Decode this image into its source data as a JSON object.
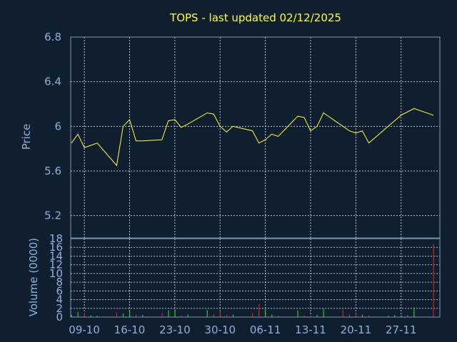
{
  "chart_data": [
    {
      "type": "line",
      "title": "TOPS - last updated 02/12/2025",
      "ylabel": "Price",
      "ylim": [
        5.0,
        6.8
      ],
      "yticks": [
        "6.8",
        "6.4",
        "6",
        "5.6",
        "5.2"
      ],
      "series": [
        {
          "color": "#ffff33",
          "x": [
            "2024-10-07",
            "2024-10-08",
            "2024-10-09",
            "2024-10-10",
            "2024-10-11",
            "2024-10-14",
            "2024-10-15",
            "2024-10-16",
            "2024-10-17",
            "2024-10-18",
            "2024-10-21",
            "2024-10-22",
            "2024-10-23",
            "2024-10-24",
            "2024-10-25",
            "2024-10-28",
            "2024-10-29",
            "2024-10-30",
            "2024-10-31",
            "2024-11-01",
            "2024-11-04",
            "2024-11-05",
            "2024-11-06",
            "2024-11-07",
            "2024-11-08",
            "2024-11-11",
            "2024-11-12",
            "2024-11-13",
            "2024-11-14",
            "2024-11-15",
            "2024-11-18",
            "2024-11-19",
            "2024-11-20",
            "2024-11-21",
            "2024-11-22",
            "2024-11-25",
            "2024-11-26",
            "2024-11-27",
            "2024-11-28",
            "2024-11-29",
            "2024-12-02"
          ],
          "y": [
            5.85,
            5.93,
            5.81,
            5.83,
            5.85,
            5.65,
            6.0,
            6.06,
            5.87,
            5.87,
            5.88,
            6.05,
            6.06,
            5.99,
            6.02,
            6.12,
            6.11,
            6.0,
            5.95,
            6.0,
            5.96,
            5.85,
            5.88,
            5.93,
            5.91,
            6.09,
            6.08,
            5.96,
            6.0,
            6.12,
            6.0,
            5.96,
            5.94,
            5.96,
            5.85,
            6.0,
            6.05,
            6.1,
            6.13,
            6.16,
            6.1
          ]
        }
      ],
      "xlim": [
        "2024-10-07",
        "2024-12-02"
      ],
      "grid": true
    },
    {
      "type": "bar",
      "ylabel": "Volume (0000)",
      "ylim": [
        0,
        18
      ],
      "yticks": [
        "18",
        "16",
        "14",
        "12",
        "10",
        "8",
        "6",
        "4",
        "2",
        "0"
      ],
      "xticks": [
        {
          "date": "2024-10-09",
          "label": "09-10"
        },
        {
          "date": "2024-10-16",
          "label": "16-10"
        },
        {
          "date": "2024-10-23",
          "label": "23-10"
        },
        {
          "date": "2024-10-30",
          "label": "30-10"
        },
        {
          "date": "2024-11-06",
          "label": "06-11"
        },
        {
          "date": "2024-11-13",
          "label": "13-11"
        },
        {
          "date": "2024-11-20",
          "label": "20-11"
        },
        {
          "date": "2024-11-27",
          "label": "27-11"
        }
      ],
      "up_color": "#22cc22",
      "down_color": "#cc2222",
      "series": [
        {
          "x": [
            "2024-10-07",
            "2024-10-08",
            "2024-10-09",
            "2024-10-10",
            "2024-10-11",
            "2024-10-14",
            "2024-10-15",
            "2024-10-16",
            "2024-10-17",
            "2024-10-18",
            "2024-10-21",
            "2024-10-22",
            "2024-10-23",
            "2024-10-24",
            "2024-10-25",
            "2024-10-28",
            "2024-10-29",
            "2024-10-30",
            "2024-10-31",
            "2024-11-01",
            "2024-11-04",
            "2024-11-05",
            "2024-11-06",
            "2024-11-07",
            "2024-11-08",
            "2024-11-11",
            "2024-11-12",
            "2024-11-13",
            "2024-11-14",
            "2024-11-15",
            "2024-11-18",
            "2024-11-19",
            "2024-11-20",
            "2024-11-21",
            "2024-11-22",
            "2024-11-25",
            "2024-11-26",
            "2024-11-27",
            "2024-11-28",
            "2024-11-29",
            "2024-12-02"
          ],
          "values": [
            0.5,
            1.2,
            1.0,
            0.4,
            0.3,
            1.0,
            0.8,
            1.3,
            0.6,
            0.5,
            0.9,
            1.5,
            1.8,
            0.4,
            0.6,
            1.6,
            0.7,
            1.4,
            0.5,
            0.6,
            0.9,
            3.0,
            1.8,
            0.6,
            0.3,
            1.5,
            0.4,
            0.4,
            0.5,
            1.9,
            1.7,
            0.6,
            0.8,
            0.5,
            0.4,
            0.3,
            0.5,
            0.3,
            0.4,
            2.2,
            16.8
          ],
          "direction": [
            "up",
            "up",
            "down",
            "up",
            "up",
            "down",
            "up",
            "up",
            "down",
            "up",
            "down",
            "up",
            "up",
            "down",
            "up",
            "up",
            "down",
            "down",
            "down",
            "up",
            "down",
            "down",
            "up",
            "up",
            "down",
            "up",
            "down",
            "down",
            "up",
            "up",
            "down",
            "down",
            "down",
            "up",
            "down",
            "up",
            "up",
            "up",
            "up",
            "up",
            "down"
          ]
        }
      ],
      "grid": true
    }
  ]
}
